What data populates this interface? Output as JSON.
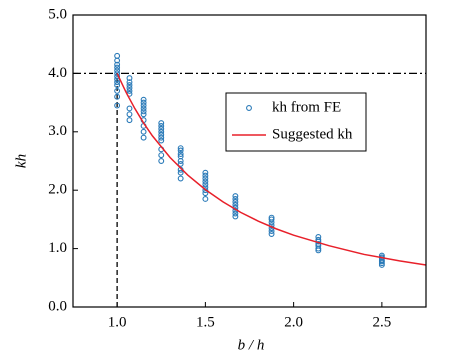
{
  "chart_data": {
    "type": "scatter",
    "x_label": "b / h",
    "y_label": "kh",
    "xlim": [
      0.75,
      2.75
    ],
    "ylim": [
      0,
      5
    ],
    "xticks": [
      {
        "value": 1,
        "label": "1.0"
      },
      {
        "value": 1.5,
        "label": "1.5"
      },
      {
        "value": 2,
        "label": "2.0"
      },
      {
        "value": 2.5,
        "label": "2.5"
      }
    ],
    "yticks": [
      {
        "value": 0,
        "label": "0.0"
      },
      {
        "value": 1,
        "label": "1.0"
      },
      {
        "value": 2,
        "label": "2.0"
      },
      {
        "value": 3,
        "label": "3.0"
      },
      {
        "value": 4,
        "label": "4.0"
      },
      {
        "value": 5,
        "label": "5.0"
      }
    ],
    "legend": "upper right",
    "reference_lines": [
      {
        "axis": "y",
        "value": 4,
        "style": "dash-dot"
      },
      {
        "axis": "x",
        "value": 1,
        "style": "dashed"
      }
    ],
    "series": [
      {
        "name": "kh from FE",
        "type": "scatter",
        "color": "#2a7ab8",
        "x": [
          1,
          1,
          1,
          1,
          1,
          1,
          1,
          1,
          1,
          1,
          1,
          1,
          1,
          1.07,
          1.07,
          1.07,
          1.07,
          1.07,
          1.07,
          1.07,
          1.07,
          1.07,
          1.15,
          1.15,
          1.15,
          1.15,
          1.15,
          1.15,
          1.15,
          1.15,
          1.15,
          1.15,
          1.25,
          1.25,
          1.25,
          1.25,
          1.25,
          1.25,
          1.25,
          1.25,
          1.25,
          1.25,
          1.36,
          1.36,
          1.36,
          1.36,
          1.36,
          1.36,
          1.36,
          1.36,
          1.36,
          1.5,
          1.5,
          1.5,
          1.5,
          1.5,
          1.5,
          1.5,
          1.5,
          1.5,
          1.67,
          1.67,
          1.67,
          1.67,
          1.67,
          1.67,
          1.67,
          1.67,
          1.875,
          1.875,
          1.875,
          1.875,
          1.875,
          1.875,
          1.875,
          2.14,
          2.14,
          2.14,
          2.14,
          2.14,
          2.14,
          2.14,
          2.5,
          2.5,
          2.5,
          2.5,
          2.5,
          2.5,
          2.5
        ],
        "values": [
          4.3,
          4.22,
          4.15,
          4.1,
          4.05,
          4.0,
          3.95,
          3.9,
          3.85,
          3.8,
          3.7,
          3.6,
          3.45,
          3.92,
          3.85,
          3.8,
          3.75,
          3.7,
          3.65,
          3.4,
          3.3,
          3.2,
          3.55,
          3.5,
          3.45,
          3.4,
          3.35,
          3.3,
          3.2,
          3.1,
          3.0,
          2.9,
          3.15,
          3.1,
          3.05,
          3.0,
          2.95,
          2.9,
          2.85,
          2.7,
          2.6,
          2.5,
          2.72,
          2.68,
          2.62,
          2.58,
          2.5,
          2.45,
          2.35,
          2.3,
          2.2,
          2.3,
          2.25,
          2.2,
          2.15,
          2.1,
          2.05,
          2.0,
          1.95,
          1.85,
          1.9,
          1.85,
          1.8,
          1.75,
          1.7,
          1.65,
          1.6,
          1.55,
          1.53,
          1.5,
          1.45,
          1.4,
          1.35,
          1.3,
          1.25,
          1.2,
          1.15,
          1.12,
          1.08,
          1.05,
          1.0,
          0.97,
          0.88,
          0.85,
          0.83,
          0.8,
          0.78,
          0.75,
          0.72
        ]
      },
      {
        "name": "Suggested kh",
        "type": "line",
        "color": "#e8202a",
        "x": [
          1,
          1.05,
          1.1,
          1.15,
          1.2,
          1.3,
          1.4,
          1.5,
          1.6,
          1.7,
          1.8,
          1.9,
          2.0,
          2.2,
          2.4,
          2.6,
          2.75
        ],
        "values": [
          4.0,
          3.68,
          3.4,
          3.15,
          2.93,
          2.56,
          2.26,
          2.01,
          1.8,
          1.62,
          1.47,
          1.34,
          1.23,
          1.05,
          0.9,
          0.79,
          0.72
        ]
      }
    ]
  }
}
